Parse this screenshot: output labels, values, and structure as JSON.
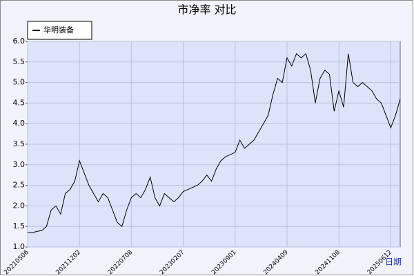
{
  "chart_data": {
    "type": "line",
    "title": "市净率 对比",
    "x_label": "日期",
    "categories": [
      "20210506",
      null,
      null,
      null,
      null,
      null,
      null,
      null,
      null,
      null,
      null,
      "20211202",
      null,
      null,
      null,
      null,
      null,
      null,
      null,
      null,
      null,
      null,
      "20220708",
      null,
      null,
      null,
      null,
      null,
      null,
      null,
      null,
      null,
      null,
      "20230207",
      null,
      null,
      null,
      null,
      null,
      null,
      null,
      null,
      null,
      null,
      "20230901",
      null,
      null,
      null,
      null,
      null,
      null,
      null,
      null,
      null,
      null,
      "20240409",
      null,
      null,
      null,
      null,
      null,
      null,
      null,
      null,
      null,
      null,
      "20241108",
      null,
      null,
      null,
      null,
      null,
      null,
      null,
      null,
      null,
      null,
      "20250612",
      null,
      null
    ],
    "series": [
      {
        "name": "华明装备",
        "color": "#000000",
        "values": [
          1.35,
          1.35,
          1.38,
          1.4,
          1.5,
          1.9,
          2.0,
          1.8,
          2.3,
          2.4,
          2.6,
          3.1,
          2.8,
          2.5,
          2.3,
          2.1,
          2.3,
          2.2,
          1.9,
          1.6,
          1.5,
          1.9,
          2.2,
          2.3,
          2.2,
          2.4,
          2.7,
          2.2,
          2.0,
          2.3,
          2.2,
          2.1,
          2.2,
          2.35,
          2.4,
          2.45,
          2.5,
          2.6,
          2.75,
          2.6,
          2.9,
          3.1,
          3.2,
          3.25,
          3.3,
          3.6,
          3.4,
          3.5,
          3.6,
          3.8,
          4.0,
          4.2,
          4.7,
          5.1,
          5.0,
          5.6,
          5.4,
          5.7,
          5.6,
          5.7,
          5.3,
          4.5,
          5.1,
          5.3,
          5.2,
          4.3,
          4.8,
          4.4,
          5.7,
          5.0,
          4.9,
          5.0,
          4.9,
          4.8,
          4.6,
          4.5,
          4.2,
          3.9,
          4.2,
          4.6
        ]
      }
    ],
    "ylim": [
      1,
      6
    ],
    "yticks": [
      {
        "value": 1,
        "label": "1.0"
      },
      1.5,
      {
        "value": 2,
        "label": "2.0"
      },
      2.5,
      {
        "value": 3,
        "label": "3.0"
      },
      3.5,
      {
        "value": 4,
        "label": "4.0"
      },
      4.5,
      {
        "value": 5,
        "label": "5.0"
      },
      5.5,
      {
        "value": 6,
        "label": "6.0"
      }
    ],
    "grid": true,
    "legend": "top-left"
  }
}
